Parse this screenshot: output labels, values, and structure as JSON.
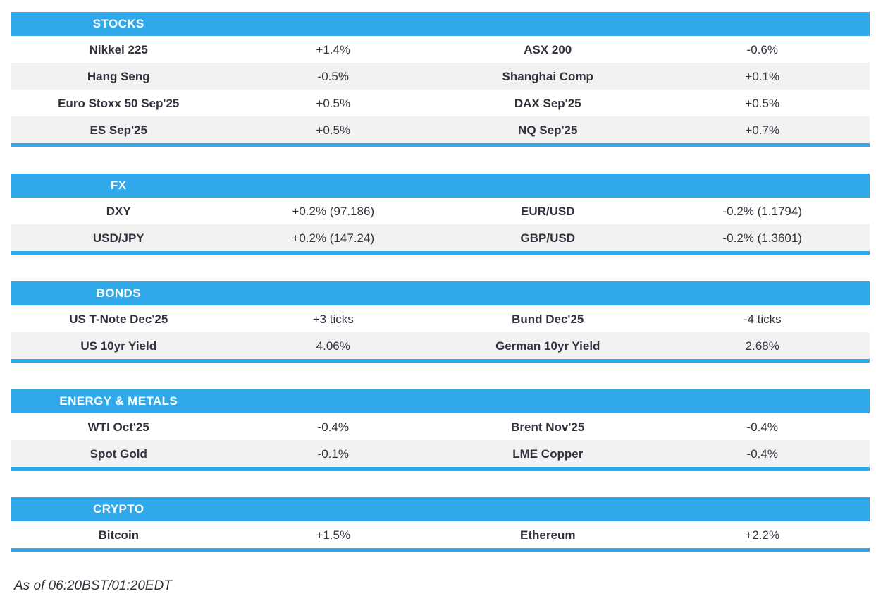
{
  "colors": {
    "accent": "#2FA9E9",
    "row_alt": "#F2F2F2",
    "text": "#32323E",
    "header_text": "#FFFFFF"
  },
  "sections": [
    {
      "title": "STOCKS",
      "rows": [
        [
          {
            "label": "Nikkei 225",
            "value": "+1.4%"
          },
          {
            "label": "ASX 200",
            "value": "-0.6%"
          }
        ],
        [
          {
            "label": "Hang Seng",
            "value": "-0.5%"
          },
          {
            "label": "Shanghai Comp",
            "value": "+0.1%"
          }
        ],
        [
          {
            "label": "Euro Stoxx 50 Sep'25",
            "value": "+0.5%"
          },
          {
            "label": "DAX Sep'25",
            "value": "+0.5%"
          }
        ],
        [
          {
            "label": "ES Sep'25",
            "value": "+0.5%"
          },
          {
            "label": "NQ Sep'25",
            "value": "+0.7%"
          }
        ]
      ]
    },
    {
      "title": "FX",
      "rows": [
        [
          {
            "label": "DXY",
            "value": "+0.2% (97.186)"
          },
          {
            "label": "EUR/USD",
            "value": "-0.2% (1.1794)"
          }
        ],
        [
          {
            "label": "USD/JPY",
            "value": "+0.2% (147.24)"
          },
          {
            "label": "GBP/USD",
            "value": "-0.2% (1.3601)"
          }
        ]
      ]
    },
    {
      "title": "BONDS",
      "rows": [
        [
          {
            "label": "US T-Note Dec'25",
            "value": "+3 ticks"
          },
          {
            "label": "Bund Dec'25",
            "value": "-4 ticks"
          }
        ],
        [
          {
            "label": "US 10yr Yield",
            "value": "4.06%"
          },
          {
            "label": "German 10yr Yield",
            "value": "2.68%"
          }
        ]
      ]
    },
    {
      "title": "ENERGY & METALS",
      "rows": [
        [
          {
            "label": "WTI Oct'25",
            "value": "-0.4%"
          },
          {
            "label": "Brent Nov'25",
            "value": "-0.4%"
          }
        ],
        [
          {
            "label": "Spot Gold",
            "value": "-0.1%"
          },
          {
            "label": "LME Copper",
            "value": "-0.4%"
          }
        ]
      ]
    },
    {
      "title": "CRYPTO",
      "rows": [
        [
          {
            "label": "Bitcoin",
            "value": "+1.5%"
          },
          {
            "label": "Ethereum",
            "value": "+2.2%"
          }
        ]
      ]
    }
  ],
  "footer": {
    "as_of": "As of 06:20BST/01:20EDT"
  }
}
